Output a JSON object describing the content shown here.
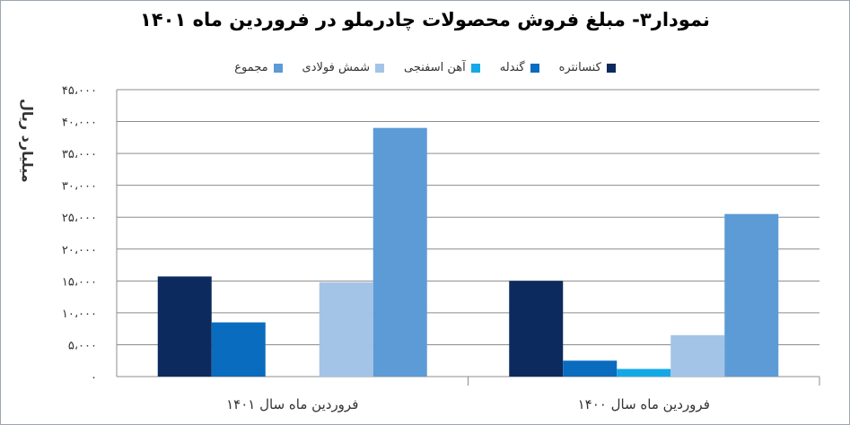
{
  "chart_data": {
    "type": "bar",
    "title": "نمودار۳- مبلغ فروش محصولات چادرملو در فروردین ماه ۱۴۰۱",
    "ylabel": "میلیارد ریال",
    "xlabel": "",
    "categories": [
      "فروردین ماه سال ۱۴۰۱",
      "فروردین ماه سال ۱۴۰۰"
    ],
    "series": [
      {
        "name": "کنسانتره",
        "color": "#0c2a5e",
        "values": [
          15700,
          15000
        ]
      },
      {
        "name": "گندله",
        "color": "#0a6cbf",
        "values": [
          8500,
          2500
        ]
      },
      {
        "name": "آهن اسفنجی",
        "color": "#14a9e6",
        "values": [
          0,
          1200
        ]
      },
      {
        "name": "شمش فولادی",
        "color": "#a3c4e6",
        "values": [
          14800,
          6500
        ]
      },
      {
        "name": "مجموع",
        "color": "#5c9bd6",
        "values": [
          39000,
          25500
        ]
      }
    ],
    "ylim": [
      0,
      45000
    ],
    "yticks": [
      0,
      5000,
      10000,
      15000,
      20000,
      25000,
      30000,
      35000,
      40000,
      45000
    ],
    "ytick_labels": [
      "۰",
      "۵،۰۰۰",
      "۱۰،۰۰۰",
      "۱۵،۰۰۰",
      "۲۰،۰۰۰",
      "۲۵،۰۰۰",
      "۳۰،۰۰۰",
      "۳۵،۰۰۰",
      "۴۰،۰۰۰",
      "۴۵،۰۰۰"
    ],
    "grid": true,
    "legend_position": "top"
  }
}
